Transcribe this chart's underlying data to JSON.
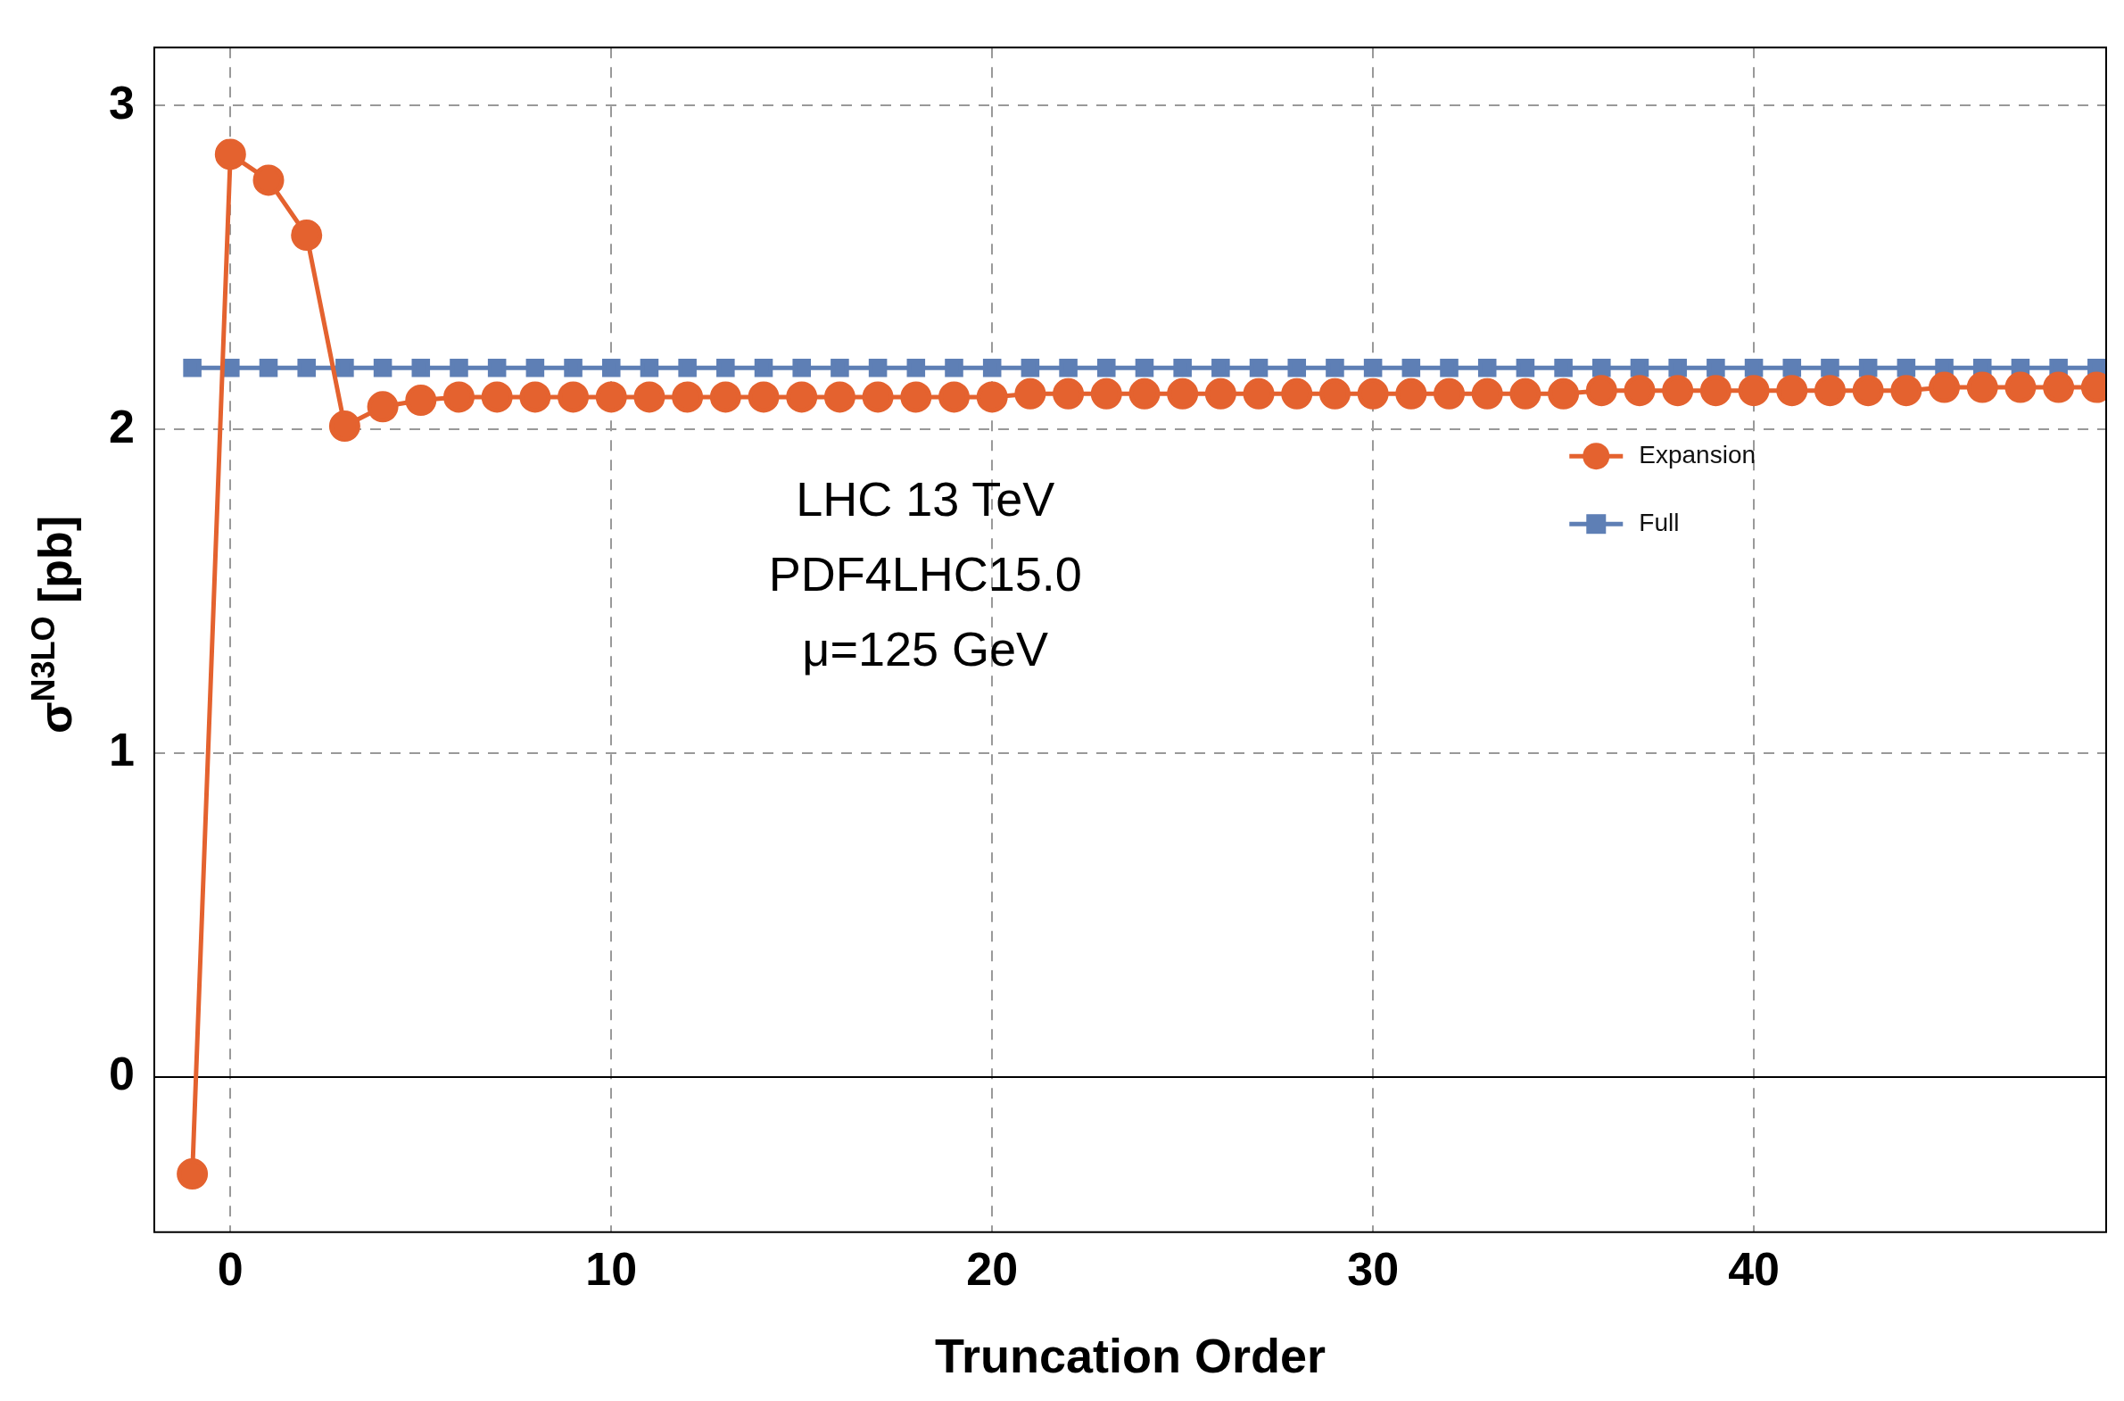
{
  "chart_data": {
    "type": "line",
    "xlabel": "Truncation Order",
    "ylabel": "σ$^{N3LO}$ [pb]",
    "x": [
      -1,
      0,
      1,
      2,
      3,
      4,
      5,
      6,
      7,
      8,
      9,
      10,
      11,
      12,
      13,
      14,
      15,
      16,
      17,
      18,
      19,
      20,
      21,
      22,
      23,
      24,
      25,
      26,
      27,
      28,
      29,
      30,
      31,
      32,
      33,
      34,
      35,
      36,
      37,
      38,
      39,
      40,
      41,
      42,
      43,
      44,
      45,
      46,
      47,
      48,
      49
    ],
    "series": [
      {
        "name": "Expansion",
        "color": "#e4622f",
        "marker": "circle",
        "values": [
          -0.3,
          2.85,
          2.77,
          2.6,
          2.01,
          2.07,
          2.09,
          2.1,
          2.1,
          2.1,
          2.1,
          2.1,
          2.1,
          2.1,
          2.1,
          2.1,
          2.1,
          2.1,
          2.1,
          2.1,
          2.1,
          2.1,
          2.11,
          2.11,
          2.11,
          2.11,
          2.11,
          2.11,
          2.11,
          2.11,
          2.11,
          2.11,
          2.11,
          2.11,
          2.11,
          2.11,
          2.11,
          2.12,
          2.12,
          2.12,
          2.12,
          2.12,
          2.12,
          2.12,
          2.12,
          2.12,
          2.13,
          2.13,
          2.13,
          2.13,
          2.13
        ]
      },
      {
        "name": "Full",
        "color": "#5e7fb5",
        "marker": "square",
        "values": [
          2.19,
          2.19,
          2.19,
          2.19,
          2.19,
          2.19,
          2.19,
          2.19,
          2.19,
          2.19,
          2.19,
          2.19,
          2.19,
          2.19,
          2.19,
          2.19,
          2.19,
          2.19,
          2.19,
          2.19,
          2.19,
          2.19,
          2.19,
          2.19,
          2.19,
          2.19,
          2.19,
          2.19,
          2.19,
          2.19,
          2.19,
          2.19,
          2.19,
          2.19,
          2.19,
          2.19,
          2.19,
          2.19,
          2.19,
          2.19,
          2.19,
          2.19,
          2.19,
          2.19,
          2.19,
          2.19,
          2.19,
          2.19,
          2.19,
          2.19,
          2.19
        ]
      }
    ],
    "xlim": [
      -2,
      49.25
    ],
    "ylim": [
      -0.48,
      3.18
    ],
    "xticks": [
      0,
      10,
      20,
      30,
      40
    ],
    "yticks": [
      0,
      1,
      2,
      3
    ],
    "grid": true,
    "legend": "right",
    "annotations": [
      "LHC 13 TeV",
      "PDF4LHC15.0",
      "μ=125 GeV"
    ]
  }
}
